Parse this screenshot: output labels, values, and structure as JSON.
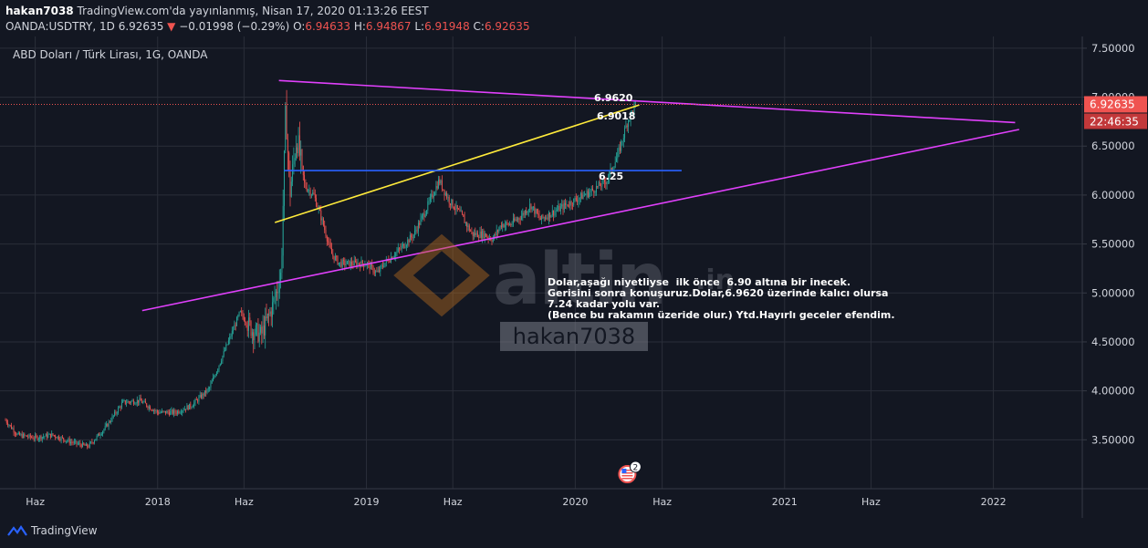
{
  "header": {
    "user": "hakan7038",
    "published": "TradingView.com'da yayınlanmış, Nisan 17, 2020 01:13:26 EEST",
    "symbol": "OANDA:USDTRY, 1D",
    "last": "6.92635",
    "change": "−0.01998 (−0.29%)",
    "open_label": "O:",
    "open": "6.94633",
    "high_label": "H:",
    "high": "6.94867",
    "low_label": "L:",
    "low": "6.91948",
    "close_label": "C:",
    "close": "6.92635"
  },
  "chart_title": "ABD Doları / Türk Lirası, 1G, OANDA",
  "price_tag": "6.92635",
  "countdown_tag": "22:46:35",
  "annotations": {
    "level_6962": "6.9620",
    "level_69018": "6.9018",
    "level_625": "6.25",
    "note": "Dolar,aşağı niyetliyse  ilk önce  6.90 altına bir inecek.\nGerisini sonra konuşuruz.Dolar,6.9620 üzerinde kalıcı olursa\n7.24 kadar yolu var.\n(Bence bu rakamın üzeride olur.) Ytd.Hayırlı geceler efendim."
  },
  "watermark": {
    "altin": "altin",
    "in": ".in",
    "user": "hakan7038"
  },
  "event_badge": "2",
  "footer": {
    "brand": "TradingView"
  },
  "colors": {
    "bg": "#131722",
    "up": "#26a69a",
    "down": "#ef5350",
    "triangle": "#e040fb",
    "yellow": "#ffeb3b",
    "blue": "#2962ff"
  },
  "chart_data": {
    "type": "candlestick",
    "ylim": [
      3.0,
      7.62
    ],
    "y_ticks": [
      "7.50000",
      "7.00000",
      "6.50000",
      "6.00000",
      "5.50000",
      "5.00000",
      "4.50000",
      "4.00000",
      "3.50000"
    ],
    "y_tick_values": [
      7.5,
      7.0,
      6.5,
      6.0,
      5.5,
      5.0,
      4.5,
      4.0,
      3.5
    ],
    "x_ticks": [
      "Haz",
      "2018",
      "Haz",
      "2019",
      "Haz",
      "2020",
      "Haz",
      "2021",
      "Haz",
      "2022"
    ],
    "x_tick_dates": [
      "2017-06-01",
      "2018-01-01",
      "2018-06-01",
      "2019-01-01",
      "2019-06-01",
      "2020-01-01",
      "2020-06-01",
      "2021-01-01",
      "2021-06-01",
      "2022-01-01"
    ],
    "price_path": [
      [
        "2017-04-10",
        3.7
      ],
      [
        "2017-05-01",
        3.55
      ],
      [
        "2017-06-01",
        3.52
      ],
      [
        "2017-07-01",
        3.55
      ],
      [
        "2017-08-01",
        3.48
      ],
      [
        "2017-09-01",
        3.43
      ],
      [
        "2017-10-01",
        3.62
      ],
      [
        "2017-11-01",
        3.88
      ],
      [
        "2017-12-01",
        3.9
      ],
      [
        "2018-01-01",
        3.78
      ],
      [
        "2018-02-01",
        3.78
      ],
      [
        "2018-03-01",
        3.85
      ],
      [
        "2018-04-01",
        4.02
      ],
      [
        "2018-05-01",
        4.45
      ],
      [
        "2018-05-25",
        4.8
      ],
      [
        "2018-06-15",
        4.62
      ],
      [
        "2018-07-01",
        4.57
      ],
      [
        "2018-07-20",
        4.85
      ],
      [
        "2018-08-05",
        5.2
      ],
      [
        "2018-08-13",
        6.9
      ],
      [
        "2018-08-20",
        6.0
      ],
      [
        "2018-09-01",
        6.6
      ],
      [
        "2018-09-15",
        6.1
      ],
      [
        "2018-10-01",
        6.0
      ],
      [
        "2018-10-15",
        5.75
      ],
      [
        "2018-11-01",
        5.4
      ],
      [
        "2018-11-15",
        5.3
      ],
      [
        "2018-12-01",
        5.3
      ],
      [
        "2019-01-01",
        5.3
      ],
      [
        "2019-01-20",
        5.2
      ],
      [
        "2019-02-01",
        5.3
      ],
      [
        "2019-03-01",
        5.45
      ],
      [
        "2019-03-25",
        5.6
      ],
      [
        "2019-04-15",
        5.85
      ],
      [
        "2019-05-08",
        6.15
      ],
      [
        "2019-05-25",
        5.95
      ],
      [
        "2019-06-15",
        5.8
      ],
      [
        "2019-07-05",
        5.6
      ],
      [
        "2019-07-25",
        5.6
      ],
      [
        "2019-08-10",
        5.55
      ],
      [
        "2019-08-25",
        5.7
      ],
      [
        "2019-09-10",
        5.7
      ],
      [
        "2019-10-01",
        5.8
      ],
      [
        "2019-10-15",
        5.9
      ],
      [
        "2019-11-01",
        5.75
      ],
      [
        "2019-12-01",
        5.85
      ],
      [
        "2020-01-01",
        5.95
      ],
      [
        "2020-02-01",
        6.05
      ],
      [
        "2020-02-25",
        6.15
      ],
      [
        "2020-03-15",
        6.4
      ],
      [
        "2020-03-25",
        6.6
      ],
      [
        "2020-04-01",
        6.75
      ],
      [
        "2020-04-16",
        6.93
      ]
    ],
    "lines": [
      {
        "name": "triangle-top",
        "x": [
          "2018-08-01",
          "2022-02-08"
        ],
        "y": [
          7.17,
          6.74
        ]
      },
      {
        "name": "triangle-bottom",
        "x": [
          "2017-12-05",
          "2022-02-15"
        ],
        "y": [
          4.82,
          6.67
        ]
      },
      {
        "name": "yellow-channel",
        "x": [
          "2018-07-25",
          "2020-04-22"
        ],
        "y": [
          5.72,
          6.92
        ]
      },
      {
        "name": "blue-support",
        "x": [
          "2018-08-10",
          "2020-07-05"
        ],
        "y": [
          6.25,
          6.25
        ]
      }
    ],
    "last_price": 6.92635
  }
}
